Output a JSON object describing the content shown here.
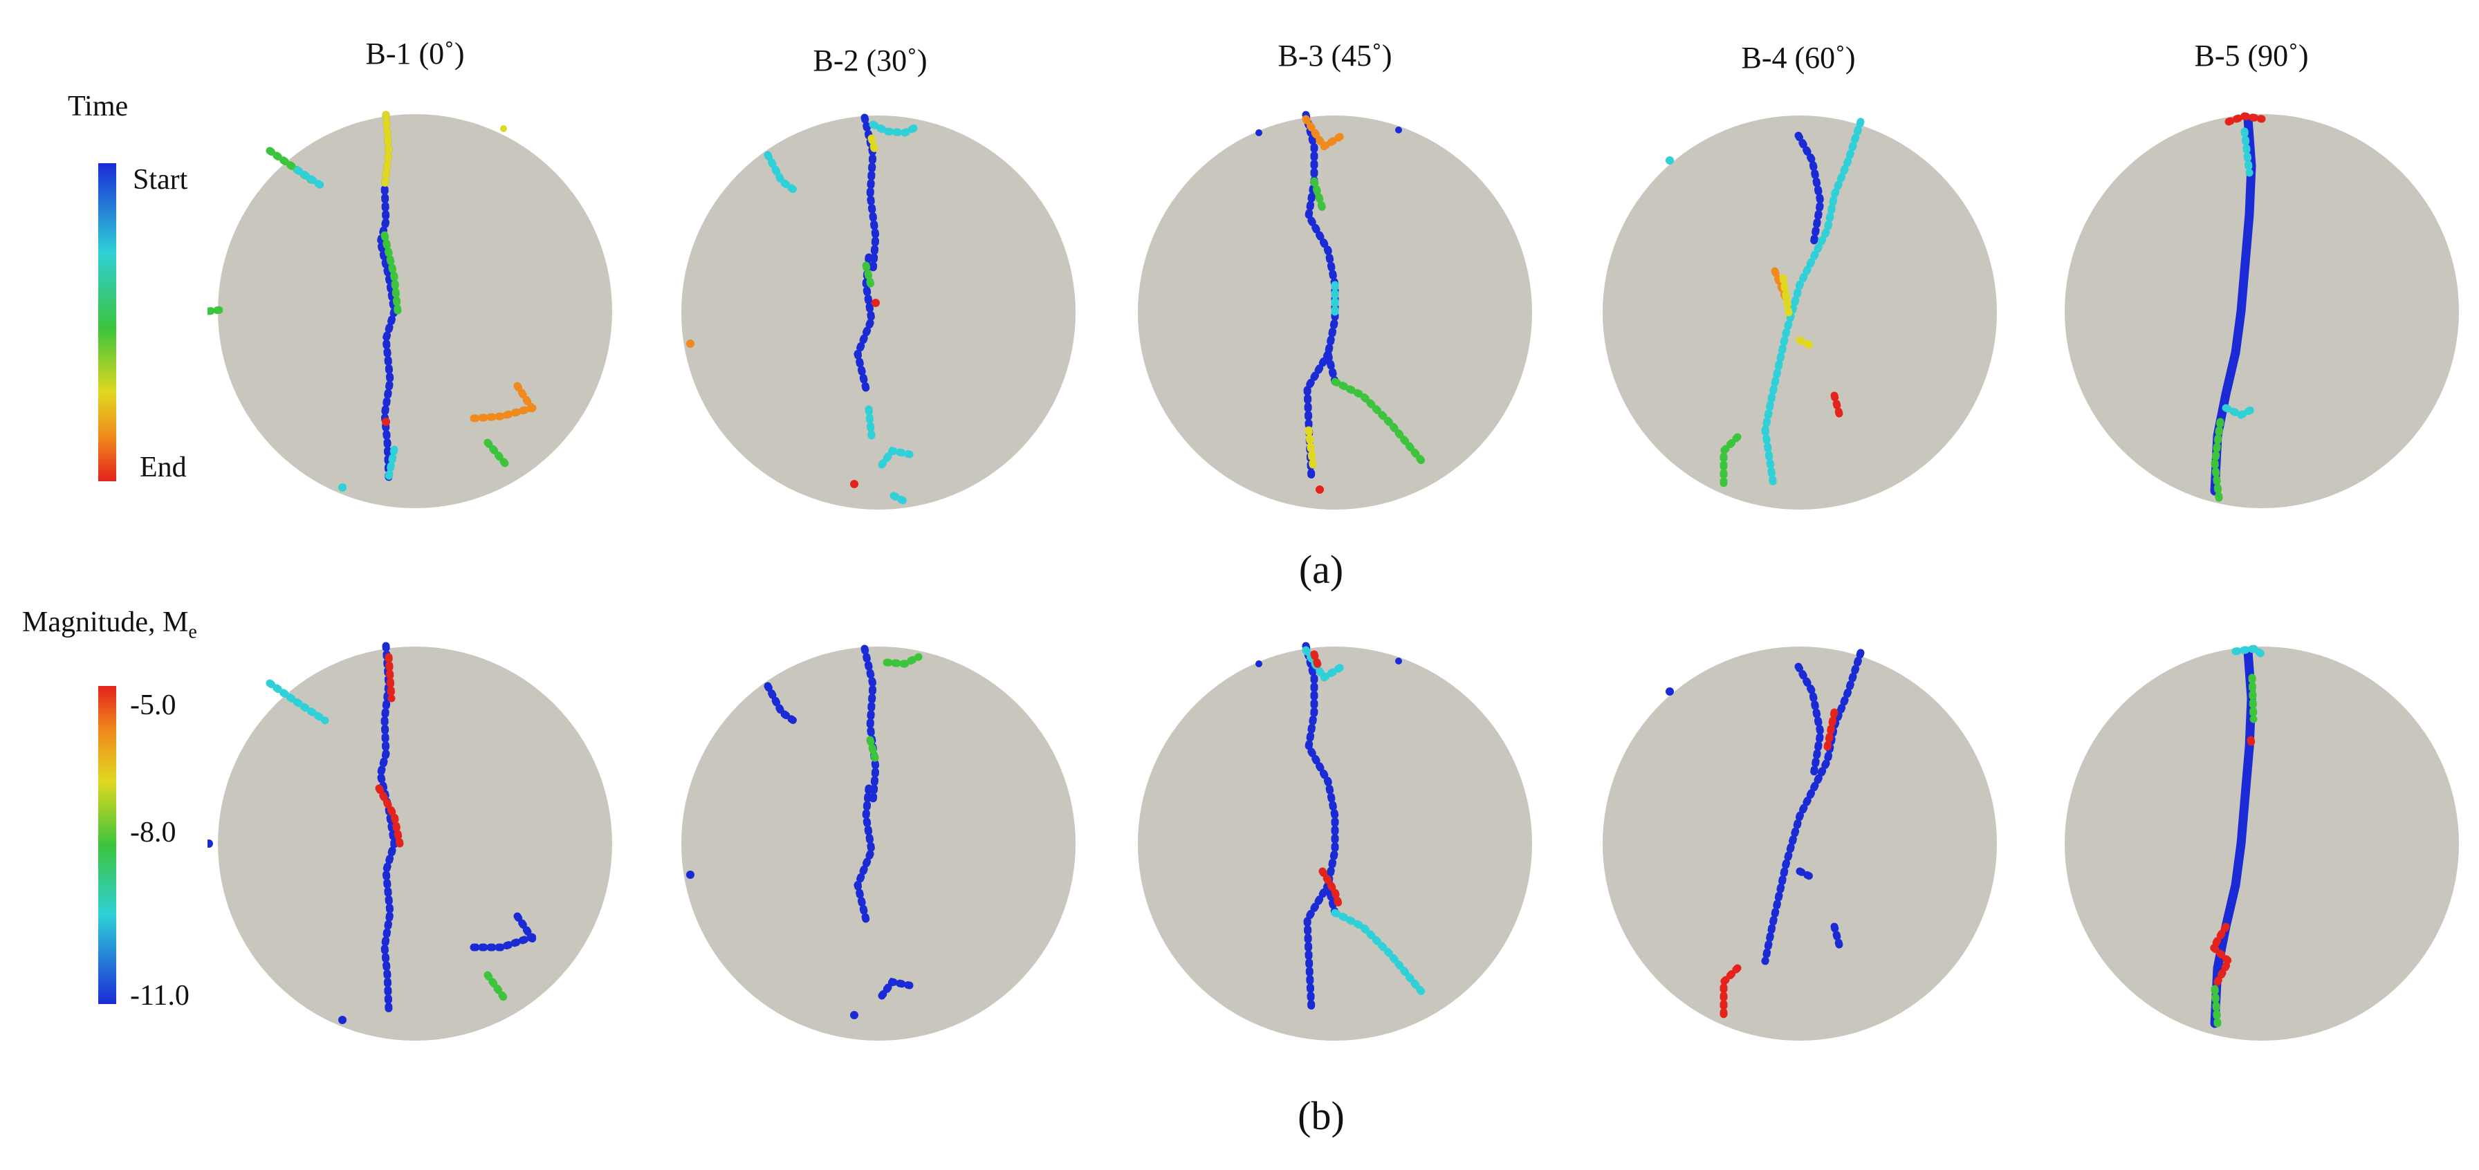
{
  "columns": [
    {
      "label": "B-1 (0˚)"
    },
    {
      "label": "B-2 (30˚)"
    },
    {
      "label": "B-3 (45˚)"
    },
    {
      "label": "B-4 (60˚)"
    },
    {
      "label": "B-5 (90˚)"
    }
  ],
  "panels": {
    "a": {
      "label": "(a)"
    },
    "b": {
      "label": "(b)"
    }
  },
  "legend_time": {
    "title": "Time",
    "start_label": "Start",
    "end_label": "End"
  },
  "legend_magnitude": {
    "title": "Magnitude, M",
    "subscript": "e",
    "ticks": [
      "-5.0",
      "-8.0",
      "-11.0"
    ]
  },
  "colors": {
    "disk": "#c9c6bd",
    "jet_blue": "#1a2bd6",
    "jet_cyan": "#2fd0d8",
    "jet_green": "#3cc43c",
    "jet_yellow": "#e0d820",
    "jet_orange": "#f08a1c",
    "jet_red": "#e3231c"
  }
}
